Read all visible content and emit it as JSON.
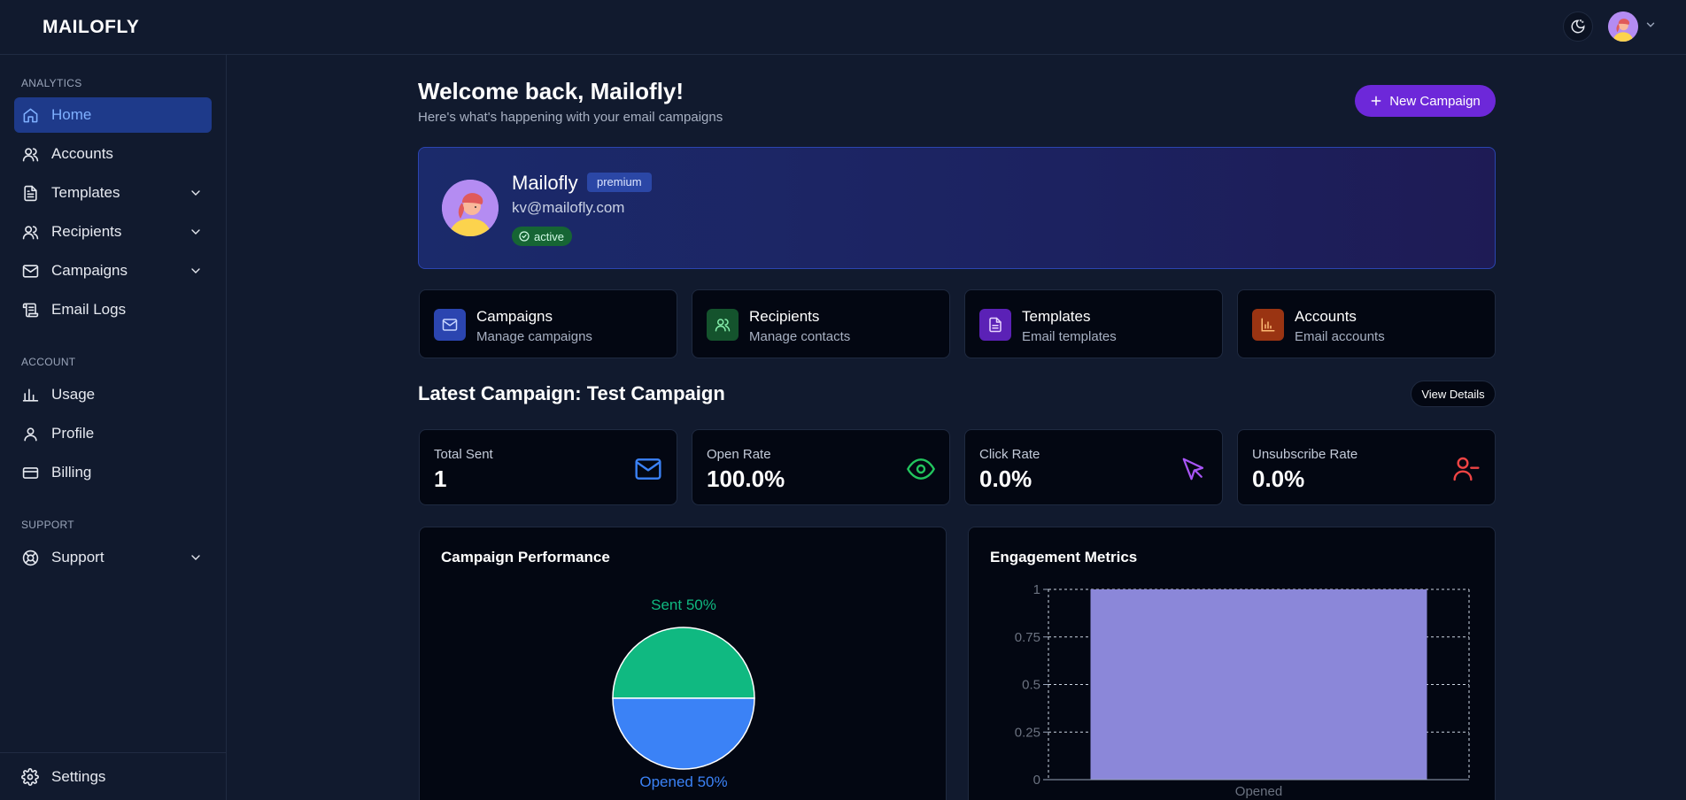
{
  "app": {
    "logo": "MAILOFLY"
  },
  "topbar": {
    "theme_toggle_icon": "moon-icon",
    "avatar_menu_icon": "chevron-down-icon"
  },
  "sidebar": {
    "sections": {
      "analytics": "ANALYTICS",
      "account": "ACCOUNT",
      "support": "SUPPORT"
    },
    "items": [
      {
        "label": "Home",
        "icon": "home-icon",
        "active": true
      },
      {
        "label": "Accounts",
        "icon": "users-icon"
      },
      {
        "label": "Templates",
        "icon": "file-text-icon",
        "expandable": true
      },
      {
        "label": "Recipients",
        "icon": "users-icon",
        "expandable": true
      },
      {
        "label": "Campaigns",
        "icon": "mail-icon",
        "expandable": true
      },
      {
        "label": "Email Logs",
        "icon": "scroll-icon"
      },
      {
        "label": "Usage",
        "icon": "bar-chart-icon"
      },
      {
        "label": "Profile",
        "icon": "user-icon"
      },
      {
        "label": "Billing",
        "icon": "credit-card-icon"
      },
      {
        "label": "Support",
        "icon": "life-buoy-icon",
        "expandable": true
      }
    ],
    "footer": {
      "label": "Settings",
      "icon": "gear-icon"
    }
  },
  "main": {
    "welcome_title": "Welcome back, Mailofly!",
    "welcome_subtitle": "Here's what's happening with your email campaigns",
    "new_campaign_label": "New Campaign",
    "profile": {
      "name": "Mailofly",
      "plan": "premium",
      "email": "kv@mailofly.com",
      "status": "active"
    },
    "quick_links": [
      {
        "title": "Campaigns",
        "subtitle": "Manage campaigns",
        "icon": "mail-icon",
        "color": "#2b45b0"
      },
      {
        "title": "Recipients",
        "subtitle": "Manage contacts",
        "icon": "users-icon",
        "color": "#14532d"
      },
      {
        "title": "Templates",
        "subtitle": "Email templates",
        "icon": "file-text-icon",
        "color": "#5b21b6"
      },
      {
        "title": "Accounts",
        "subtitle": "Email accounts",
        "icon": "bar-chart-icon",
        "color": "#9a3412"
      }
    ],
    "latest_campaign_title": "Latest Campaign: Test Campaign",
    "view_details_label": "View Details",
    "stats": [
      {
        "label": "Total Sent",
        "value": "1",
        "icon": "mail-icon",
        "color": "#3b82f6"
      },
      {
        "label": "Open Rate",
        "value": "100.0%",
        "icon": "eye-icon",
        "color": "#22c55e"
      },
      {
        "label": "Click Rate",
        "value": "0.0%",
        "icon": "cursor-icon",
        "color": "#a855f7"
      },
      {
        "label": "Unsubscribe Rate",
        "value": "0.0%",
        "icon": "user-minus-icon",
        "color": "#ef4444"
      }
    ],
    "panels": {
      "performance_title": "Campaign Performance",
      "engagement_title": "Engagement Metrics"
    }
  },
  "chart_data": [
    {
      "type": "pie",
      "title": "Campaign Performance",
      "categories": [
        "Sent",
        "Opened"
      ],
      "values": [
        50,
        50
      ],
      "labels": [
        "Sent 50%",
        "Opened 50%"
      ],
      "colors": [
        "#10b981",
        "#3b82f6"
      ]
    },
    {
      "type": "bar",
      "title": "Engagement Metrics",
      "categories": [
        "Opened"
      ],
      "values": [
        1
      ],
      "ylim": [
        0,
        1
      ],
      "yticks": [
        "0",
        "0.25",
        "0.5",
        "0.75",
        "1"
      ],
      "grid": true,
      "color": "#8b87d9"
    }
  ]
}
